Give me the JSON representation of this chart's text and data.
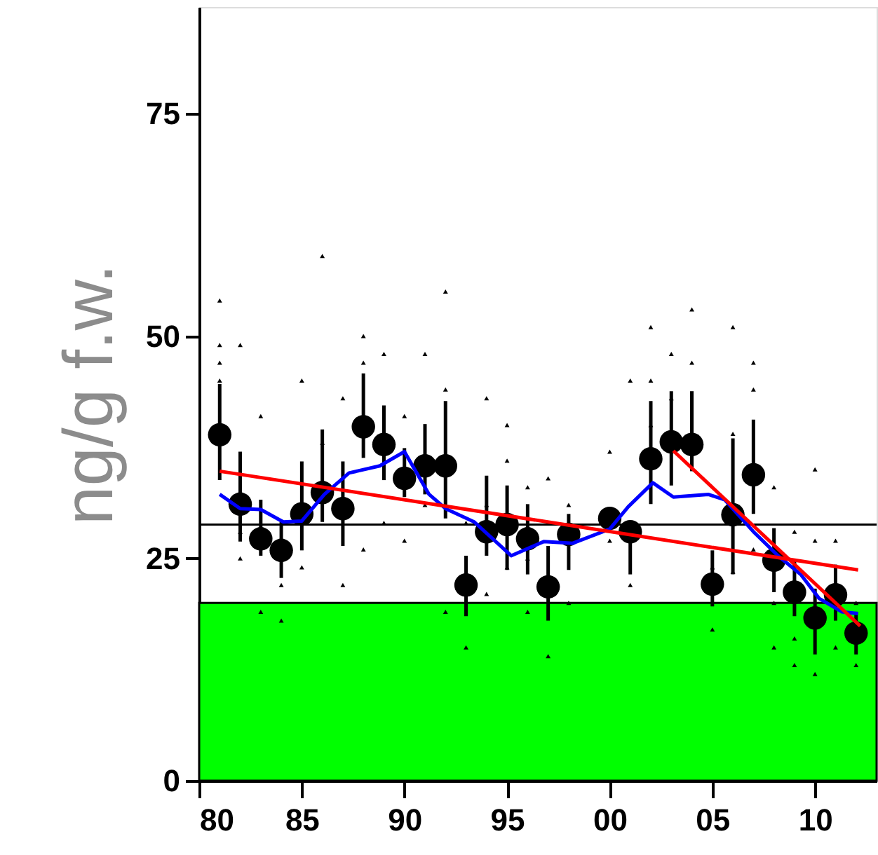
{
  "chart_data": {
    "type": "scatter",
    "ylabel": "ng/g f.w.",
    "xlim": [
      1980,
      2013
    ],
    "ylim": [
      0,
      87
    ],
    "xticks": [
      {
        "value": 1980,
        "label": "80"
      },
      {
        "value": 1985,
        "label": "85"
      },
      {
        "value": 1990,
        "label": "90"
      },
      {
        "value": 1995,
        "label": "95"
      },
      {
        "value": 2000,
        "label": "00"
      },
      {
        "value": 2005,
        "label": "05"
      },
      {
        "value": 2010,
        "label": "10"
      }
    ],
    "yticks": [
      0,
      25,
      50,
      75
    ],
    "grid": false,
    "bands": [
      {
        "axis": "y",
        "from": 0,
        "to": 20,
        "color": "#00ff00"
      }
    ],
    "ref_lines": [
      {
        "axis": "y",
        "value": 28.8,
        "color": "#000000"
      }
    ],
    "series": [
      {
        "color": "#000000",
        "marker": "triangle",
        "x": [
          1981,
          1981,
          1981,
          1981,
          1982,
          1982,
          1982,
          1983,
          1983,
          1984,
          1984,
          1985,
          1985,
          1986,
          1986,
          1987,
          1987,
          1988,
          1988,
          1988,
          1989,
          1989,
          1990,
          1990,
          1991,
          1991,
          1992,
          1992,
          1992,
          1993,
          1993,
          1994,
          1994,
          1994,
          1995,
          1995,
          1995,
          1996,
          1996,
          1996,
          1997,
          1997,
          1998,
          1998,
          2000,
          2000,
          2001,
          2001,
          2002,
          2002,
          2002,
          2003,
          2003,
          2004,
          2004,
          2005,
          2005,
          2006,
          2006,
          2006,
          2007,
          2007,
          2007,
          2008,
          2008,
          2008,
          2009,
          2009,
          2009,
          2010,
          2010,
          2010,
          2011,
          2011,
          2012,
          2012
        ],
        "values": [
          54,
          49,
          47,
          45,
          49,
          28,
          25,
          41,
          19,
          18,
          22,
          45,
          24,
          59,
          38,
          43,
          22,
          50,
          47,
          26,
          48,
          29,
          41,
          27,
          48,
          31,
          55,
          44,
          19,
          29,
          15,
          43,
          31,
          21,
          40,
          36,
          24,
          33,
          25,
          19,
          34,
          14,
          31,
          20,
          37,
          27,
          45,
          22,
          51,
          45,
          40,
          48,
          43,
          53,
          47,
          24,
          17,
          51,
          39,
          23.5,
          47,
          44,
          26,
          33,
          20,
          15,
          28,
          16,
          13,
          35,
          27,
          12,
          27,
          15,
          20,
          13
        ]
      },
      {
        "color": "#000000",
        "marker": "circle",
        "x": [
          1981,
          1982,
          1983,
          1984,
          1985,
          1986,
          1987,
          1988,
          1989,
          1990,
          1991,
          1992,
          1993,
          1994,
          1995,
          1996,
          1997,
          1998,
          2000,
          2001,
          2002,
          2003,
          2004,
          2005,
          2006,
          2007,
          2008,
          2009,
          2010,
          2011,
          2012
        ],
        "values": [
          38.9,
          31.1,
          27.2,
          25.9,
          30.0,
          32.4,
          30.6,
          39.8,
          37.8,
          34.0,
          35.4,
          35.4,
          22.0,
          28.0,
          28.8,
          27.2,
          21.8,
          27.7,
          29.5,
          28.0,
          36.2,
          38.1,
          37.8,
          22.1,
          29.9,
          34.4,
          24.8,
          21.2,
          18.3,
          20.9,
          16.6
        ],
        "errors": [
          [
            33.8,
            44.6
          ],
          [
            26.9,
            37.0
          ],
          [
            25.3,
            31.6
          ],
          [
            22.8,
            29.1
          ],
          [
            25.9,
            35.9
          ],
          [
            29.1,
            39.5
          ],
          [
            26.4,
            35.9
          ],
          [
            36.3,
            45.8
          ],
          [
            33.8,
            42.2
          ],
          [
            31.9,
            37.4
          ],
          [
            32.2,
            40.1
          ],
          [
            29.5,
            42.7
          ],
          [
            18.5,
            25.3
          ],
          [
            25.3,
            34.3
          ],
          [
            23.7,
            33.2
          ],
          [
            23.2,
            31.1
          ],
          [
            18.0,
            26.4
          ],
          [
            23.7,
            30.0
          ],
          null,
          [
            23.2,
            29.1
          ],
          [
            31.1,
            42.7
          ],
          [
            33.2,
            43.8
          ],
          [
            34.8,
            43.8
          ],
          [
            19.6,
            25.9
          ],
          [
            23.2,
            38.5
          ],
          [
            30.0,
            40.6
          ],
          [
            21.2,
            28.4
          ],
          [
            18.5,
            24.8
          ],
          [
            14.2,
            21.6
          ],
          [
            18.0,
            24.3
          ],
          [
            14.2,
            19.0
          ]
        ]
      },
      {
        "type": "line",
        "color": "#0000ff",
        "x": [
          1981.0,
          1982.0,
          1983.0,
          1984.1,
          1985.0,
          1986.1,
          1987.3,
          1988.8,
          1990.0,
          1991.2,
          1992.0,
          1993.4,
          1995.2,
          1996.8,
          1998.2,
          2000.0,
          2000.9,
          2002.1,
          2003.1,
          2004.8,
          2005.6,
          2007.0,
          2008.2,
          2009.3,
          2010.2,
          2011.3,
          2012.1
        ],
        "values": [
          32.2,
          30.6,
          30.5,
          29.1,
          29.2,
          32.2,
          34.6,
          35.4,
          37.0,
          32.2,
          30.6,
          29.1,
          25.3,
          26.9,
          26.7,
          28.3,
          30.8,
          33.5,
          31.9,
          32.2,
          31.6,
          28.0,
          25.3,
          23.2,
          20.5,
          19.0,
          18.8
        ]
      },
      {
        "type": "line",
        "color": "#ff0000",
        "x": [
          1981.0,
          2012.1
        ],
        "values": [
          34.8,
          23.7
        ]
      },
      {
        "type": "line",
        "color": "#ff0000",
        "x": [
          2003.1,
          2012.2
        ],
        "values": [
          37.1,
          17.4
        ]
      }
    ]
  }
}
